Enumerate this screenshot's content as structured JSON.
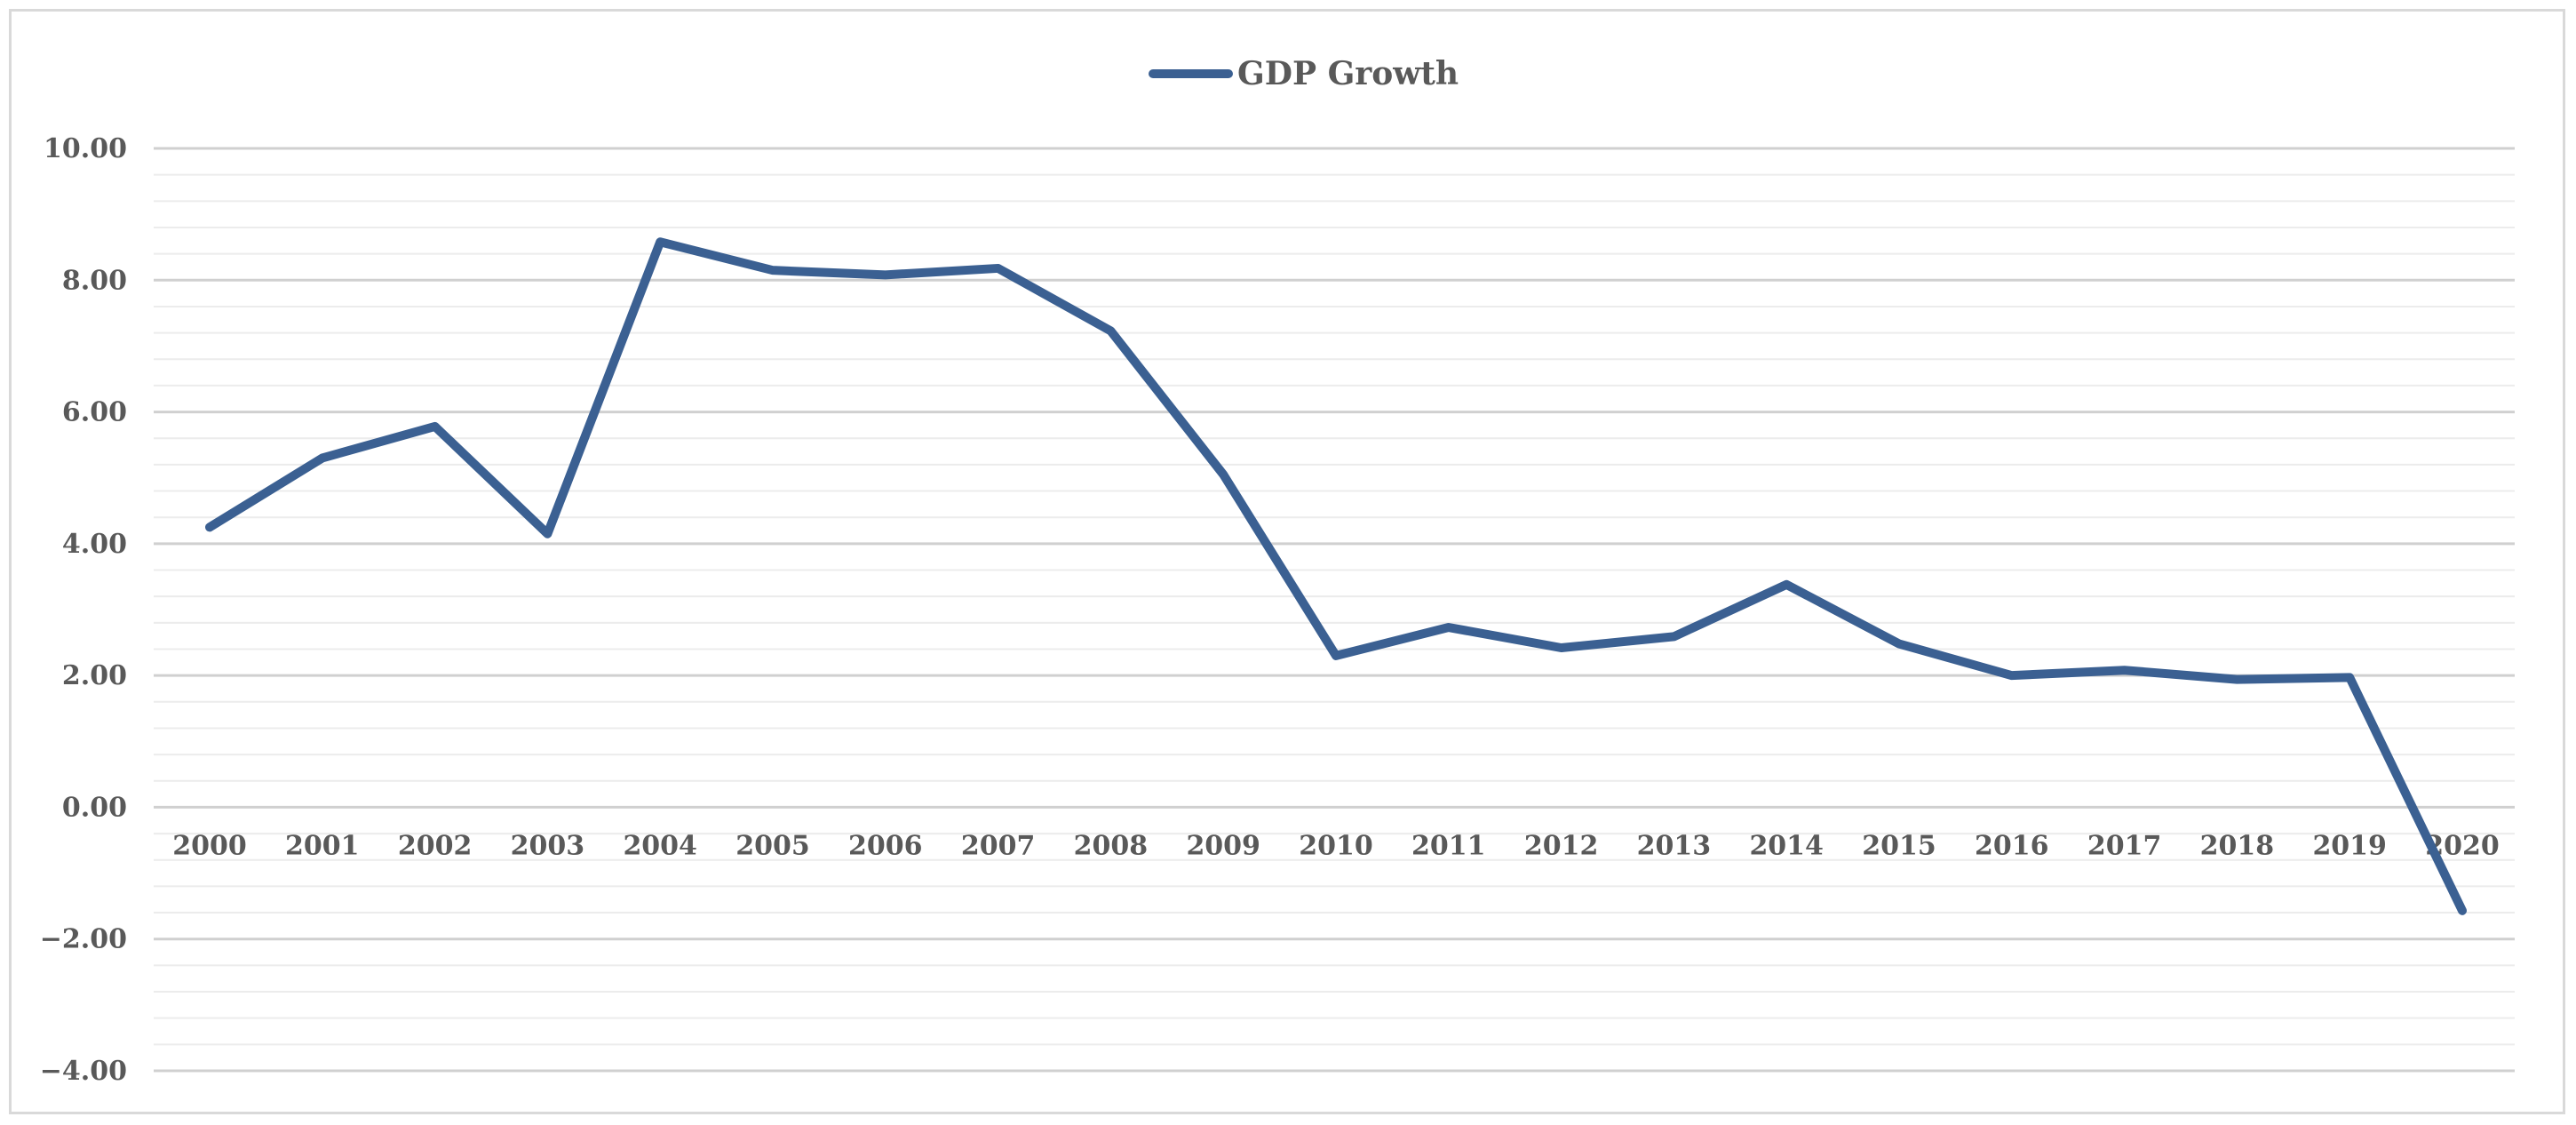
{
  "chart_data": {
    "type": "line",
    "title": "",
    "xlabel": "",
    "ylabel": "",
    "legend": "top-center",
    "grid": true,
    "ylim": [
      -4,
      10
    ],
    "y_major_step": 2,
    "y_minor_step": 0.4,
    "y_tick_labels": [
      "10.00",
      "8.00",
      "6.00",
      "4.00",
      "2.00",
      "0.00",
      "−2.00",
      "−4.00"
    ],
    "categories": [
      "2000",
      "2001",
      "2002",
      "2003",
      "2004",
      "2005",
      "2006",
      "2007",
      "2008",
      "2009",
      "2010",
      "2011",
      "2012",
      "2013",
      "2014",
      "2015",
      "2016",
      "2017",
      "2018",
      "2019",
      "2020"
    ],
    "series": [
      {
        "name": "GDP Growth",
        "color": "#3b6092",
        "values": [
          4.25,
          5.3,
          5.78,
          4.15,
          8.58,
          8.15,
          8.08,
          8.18,
          7.23,
          5.05,
          2.3,
          2.73,
          2.42,
          2.59,
          3.38,
          2.48,
          2.0,
          2.08,
          1.94,
          1.97,
          -1.57
        ]
      }
    ]
  }
}
